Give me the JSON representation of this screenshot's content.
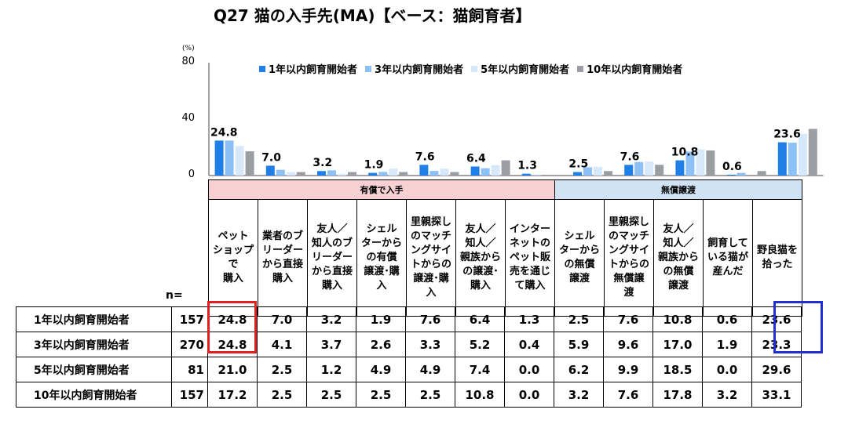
{
  "title": "Q27 猫の入手先(MA)【ベース：猫飼育者】",
  "unit": "(%)",
  "colors": {
    "series": [
      "#1f7fe6",
      "#8dc0f5",
      "#d7e8fb",
      "#9a9ea3"
    ],
    "paid_bg": "#f6d0d3",
    "free_bg": "#cfe3f5",
    "highlight_red": "#e02020",
    "highlight_blue": "#2030d0"
  },
  "groups": [
    {
      "label": "有償で入手",
      "span": 7
    },
    {
      "label": "無償譲渡",
      "span": 5
    }
  ],
  "n_label": "n=",
  "chart_data": {
    "type": "bar",
    "ylim": [
      0,
      80
    ],
    "yticks": [
      "0",
      "40",
      "80"
    ],
    "legend_position": "top",
    "categories": [
      "ペット\nショップで\n購入",
      "業者のブ\nリーダー\nから直接\n購入",
      "友人／\n知人のブ\nリーダー\nから直接\n購入",
      "シェル\nターから\nの有償\n譲渡･購\n入",
      "里親探し\nのマッチ\nングサイ\nトからの\n譲渡･購\n入",
      "友人／\n知人／\n親族から\nの譲渡･\n購入",
      "インター\nネットの\nペット販\n売を通じ\nて購入",
      "シェル\nターから\nの無償\n譲渡",
      "里親探し\nのマッチ\nングサイ\nトからの\n無償譲\n渡",
      "友人／\n知人／\n親族から\nの無償\n譲渡",
      "飼育して\nいる猫が\n産んだ",
      "野良猫を\n拾った"
    ],
    "top_labels": [
      "24.8",
      "7.0",
      "3.2",
      "1.9",
      "7.6",
      "6.4",
      "1.3",
      "2.5",
      "7.6",
      "10.8",
      "0.6",
      "23.6"
    ],
    "series": [
      {
        "name": "1年以内飼育開始者",
        "n": "157",
        "values": [
          24.8,
          7.0,
          3.2,
          1.9,
          7.6,
          6.4,
          1.3,
          2.5,
          7.6,
          10.8,
          0.6,
          23.6
        ]
      },
      {
        "name": "3年以内飼育開始者",
        "n": "270",
        "values": [
          24.8,
          4.1,
          3.7,
          2.6,
          3.3,
          5.2,
          0.4,
          5.9,
          9.6,
          17.0,
          1.9,
          23.3
        ]
      },
      {
        "name": "5年以内飼育開始者",
        "n": "81",
        "values": [
          21.0,
          2.5,
          1.2,
          4.9,
          4.9,
          7.4,
          0.0,
          6.2,
          9.9,
          18.5,
          0.0,
          29.6
        ]
      },
      {
        "name": "10年以内飼育開始者",
        "n": "157",
        "values": [
          17.2,
          2.5,
          2.5,
          2.5,
          2.5,
          10.8,
          0.0,
          3.2,
          7.6,
          17.8,
          3.2,
          33.1
        ]
      }
    ]
  }
}
